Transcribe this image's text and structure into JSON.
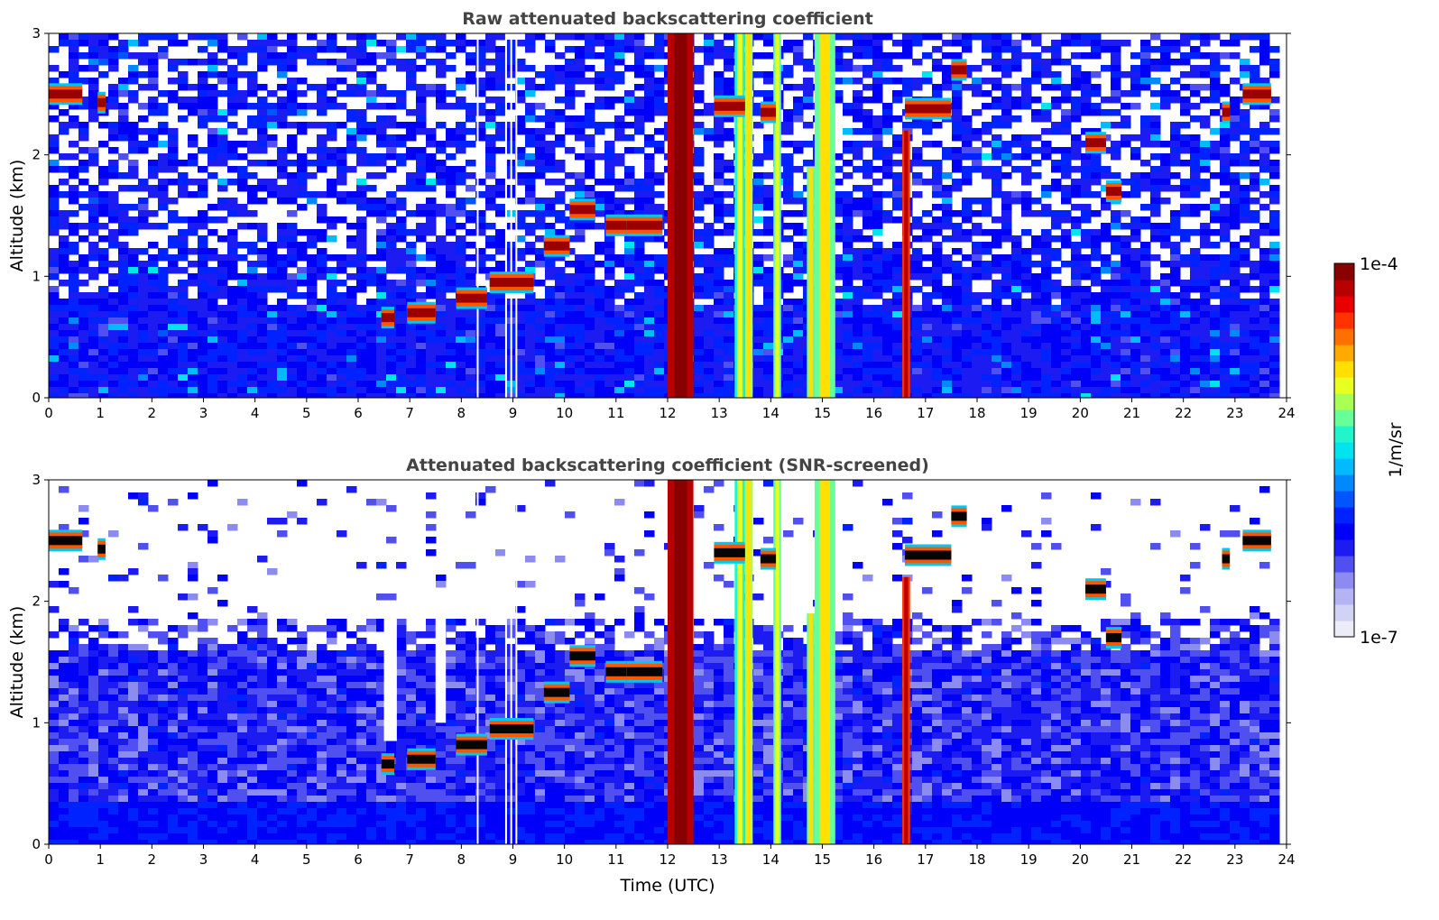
{
  "figure": {
    "colorbar": {
      "label": "1/m/sr",
      "max_label": "1e-4",
      "min_label": "1e-7",
      "colors": [
        "#ececf8",
        "#d2d2f4",
        "#b4b4f2",
        "#8c8cf0",
        "#5050f0",
        "#1c1cf2",
        "#0000f8",
        "#0022ff",
        "#0055ff",
        "#0088ff",
        "#00bbff",
        "#00e4ee",
        "#22f4cc",
        "#66ff99",
        "#aaff55",
        "#e8ff22",
        "#ffe000",
        "#ffaa00",
        "#ff7000",
        "#ff3300",
        "#e80000",
        "#b80000",
        "#880000"
      ]
    }
  },
  "chart_data": [
    {
      "type": "heatmap",
      "title": "Raw attenuated backscattering coefficient",
      "xlabel": "",
      "ylabel": "Altitude (km)",
      "xlim": [
        0,
        24
      ],
      "ylim": [
        0,
        3
      ],
      "x_ticks": [
        "0",
        "1",
        "2",
        "3",
        "4",
        "5",
        "6",
        "7",
        "8",
        "9",
        "10",
        "11",
        "12",
        "13",
        "14",
        "15",
        "16",
        "17",
        "18",
        "19",
        "20",
        "21",
        "22",
        "23",
        "24"
      ],
      "y_ticks": [
        "0",
        "1",
        "2",
        "3"
      ],
      "data_end_time": 23.7,
      "cloud_layers": [
        {
          "t0": 0.0,
          "t1": 0.65,
          "alt": 2.5
        },
        {
          "t0": 0.95,
          "t1": 1.1,
          "alt": 2.43
        },
        {
          "t0": 6.45,
          "t1": 6.7,
          "alt": 0.66
        },
        {
          "t0": 6.95,
          "t1": 7.5,
          "alt": 0.7
        },
        {
          "t0": 7.9,
          "t1": 8.5,
          "alt": 0.82
        },
        {
          "t0": 8.55,
          "t1": 9.4,
          "alt": 0.95
        },
        {
          "t0": 9.6,
          "t1": 10.1,
          "alt": 1.25
        },
        {
          "t0": 10.1,
          "t1": 10.6,
          "alt": 1.55
        },
        {
          "t0": 10.8,
          "t1": 11.2,
          "alt": 1.42
        },
        {
          "t0": 11.2,
          "t1": 11.9,
          "alt": 1.42
        },
        {
          "t0": 12.9,
          "t1": 13.5,
          "alt": 2.4
        },
        {
          "t0": 13.8,
          "t1": 14.1,
          "alt": 2.35
        },
        {
          "t0": 16.6,
          "t1": 17.5,
          "alt": 2.38
        },
        {
          "t0": 17.5,
          "t1": 17.8,
          "alt": 2.7
        },
        {
          "t0": 20.1,
          "t1": 20.5,
          "alt": 2.1
        },
        {
          "t0": 20.5,
          "t1": 20.8,
          "alt": 1.7
        },
        {
          "t0": 22.75,
          "t1": 22.9,
          "alt": 2.35
        },
        {
          "t0": 23.15,
          "t1": 23.7,
          "alt": 2.5
        }
      ],
      "precip_shafts": [
        {
          "t0": 12.0,
          "t1": 12.5,
          "alt_top": 3.0,
          "level": 0.95
        },
        {
          "t0": 13.3,
          "t1": 13.5,
          "alt_top": 3.0,
          "level": 0.55
        },
        {
          "t0": 13.5,
          "t1": 13.65,
          "alt_top": 3.0,
          "level": 0.62
        },
        {
          "t0": 14.05,
          "t1": 14.2,
          "alt_top": 3.0,
          "level": 0.58
        },
        {
          "t0": 14.7,
          "t1": 14.85,
          "alt_top": 1.9,
          "level": 0.6
        },
        {
          "t0": 14.85,
          "t1": 15.25,
          "alt_top": 3.0,
          "level": 0.6
        },
        {
          "t0": 16.55,
          "t1": 16.7,
          "alt_top": 2.2,
          "level": 0.85
        }
      ],
      "dropout_times": [
        8.3,
        8.85,
        8.95,
        9.05
      ]
    },
    {
      "type": "heatmap",
      "title": "Attenuated backscattering coefficient (SNR-screened)",
      "xlabel": "Time (UTC)",
      "ylabel": "Altitude (km)",
      "xlim": [
        0,
        24
      ],
      "ylim": [
        0,
        3
      ],
      "x_ticks": [
        "0",
        "1",
        "2",
        "3",
        "4",
        "5",
        "6",
        "7",
        "8",
        "9",
        "10",
        "11",
        "12",
        "13",
        "14",
        "15",
        "16",
        "17",
        "18",
        "19",
        "20",
        "21",
        "22",
        "23",
        "24"
      ],
      "y_ticks": [
        "0",
        "1",
        "2",
        "3"
      ],
      "data_end_time": 23.7,
      "cloud_layers": [
        {
          "t0": 0.0,
          "t1": 0.65,
          "alt": 2.5
        },
        {
          "t0": 0.95,
          "t1": 1.1,
          "alt": 2.43
        },
        {
          "t0": 6.45,
          "t1": 6.7,
          "alt": 0.66
        },
        {
          "t0": 6.95,
          "t1": 7.5,
          "alt": 0.7
        },
        {
          "t0": 7.9,
          "t1": 8.5,
          "alt": 0.82
        },
        {
          "t0": 8.55,
          "t1": 9.4,
          "alt": 0.95
        },
        {
          "t0": 9.6,
          "t1": 10.1,
          "alt": 1.25
        },
        {
          "t0": 10.1,
          "t1": 10.6,
          "alt": 1.55
        },
        {
          "t0": 10.8,
          "t1": 11.2,
          "alt": 1.42
        },
        {
          "t0": 11.2,
          "t1": 11.9,
          "alt": 1.42
        },
        {
          "t0": 12.9,
          "t1": 13.5,
          "alt": 2.4
        },
        {
          "t0": 13.8,
          "t1": 14.1,
          "alt": 2.35
        },
        {
          "t0": 16.6,
          "t1": 17.5,
          "alt": 2.38
        },
        {
          "t0": 17.5,
          "t1": 17.8,
          "alt": 2.7
        },
        {
          "t0": 20.1,
          "t1": 20.5,
          "alt": 2.1
        },
        {
          "t0": 20.5,
          "t1": 20.8,
          "alt": 1.7
        },
        {
          "t0": 22.75,
          "t1": 22.9,
          "alt": 2.35
        },
        {
          "t0": 23.15,
          "t1": 23.7,
          "alt": 2.5
        }
      ],
      "precip_shafts": [
        {
          "t0": 12.0,
          "t1": 12.5,
          "alt_top": 3.0,
          "level": 0.95
        },
        {
          "t0": 13.3,
          "t1": 13.5,
          "alt_top": 3.0,
          "level": 0.55
        },
        {
          "t0": 13.5,
          "t1": 13.65,
          "alt_top": 3.0,
          "level": 0.62
        },
        {
          "t0": 14.05,
          "t1": 14.2,
          "alt_top": 3.0,
          "level": 0.58
        },
        {
          "t0": 14.7,
          "t1": 14.85,
          "alt_top": 1.9,
          "level": 0.6
        },
        {
          "t0": 14.85,
          "t1": 15.25,
          "alt_top": 3.0,
          "level": 0.6
        },
        {
          "t0": 16.55,
          "t1": 16.7,
          "alt_top": 2.2,
          "level": 0.85
        }
      ],
      "dropout_times": [
        8.3,
        8.85,
        8.95,
        9.05
      ]
    }
  ]
}
